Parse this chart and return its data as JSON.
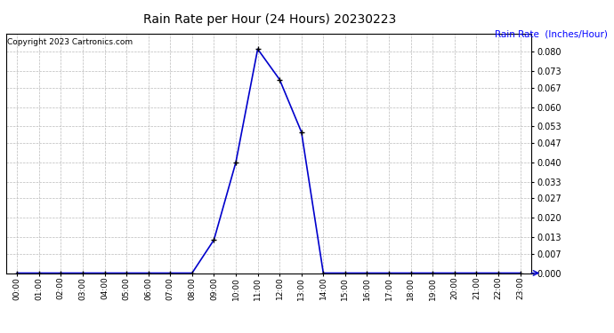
{
  "title": "Rain Rate per Hour (24 Hours) 20230223",
  "ylabel": "Rain Rate  (Inches/Hour)",
  "copyright": "Copyright 2023 Cartronics.com",
  "line_color": "#0000cc",
  "marker_color": "#000000",
  "background_color": "#ffffff",
  "grid_color": "#bbbbbb",
  "title_color": "#000000",
  "ylabel_color": "#0000ff",
  "ylim": [
    0.0,
    0.0867
  ],
  "yticks": [
    0.0,
    0.007,
    0.013,
    0.02,
    0.027,
    0.033,
    0.04,
    0.047,
    0.053,
    0.06,
    0.067,
    0.073,
    0.08
  ],
  "hours": [
    0,
    1,
    2,
    3,
    4,
    5,
    6,
    7,
    8,
    9,
    10,
    11,
    12,
    13,
    14,
    15,
    16,
    17,
    18,
    19,
    20,
    21,
    22,
    23
  ],
  "values": [
    0.0,
    0.0,
    0.0,
    0.0,
    0.0,
    0.0,
    0.0,
    0.0,
    0.0,
    0.012,
    0.04,
    0.081,
    0.07,
    0.051,
    0.0,
    0.0,
    0.0,
    0.0,
    0.0,
    0.0,
    0.0,
    0.0,
    0.0,
    0.0
  ],
  "xlim": [
    -0.5,
    23.5
  ]
}
